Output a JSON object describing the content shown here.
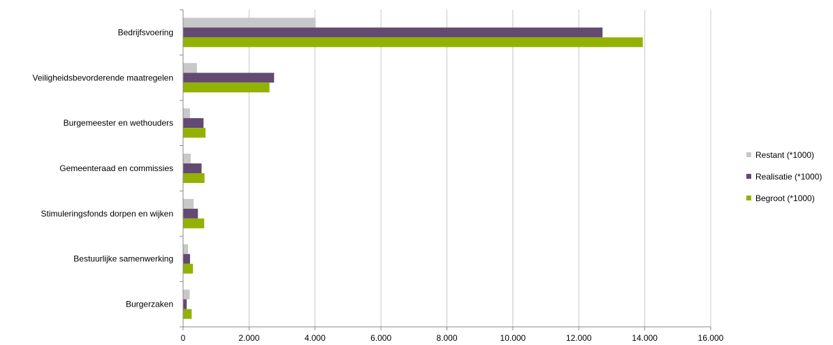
{
  "chart_data": {
    "type": "bar",
    "orientation": "horizontal",
    "categories": [
      "Bedrijfsvoering",
      "Veiligheidsbevorderende maatregelen",
      "Burgemeester en wethouders",
      "Gemeenteraad en commissies",
      "Stimuleringsfonds dorpen en wijken",
      "Bestuurlijke samenwerking",
      "Burgerzaken"
    ],
    "series": [
      {
        "name": "Restant (*1000)",
        "color": "#c8c8c8",
        "values": [
          4020,
          420,
          210,
          230,
          320,
          150,
          200
        ]
      },
      {
        "name": "Realisatie (*1000)",
        "color": "#624a72",
        "values": [
          12720,
          2760,
          620,
          560,
          450,
          210,
          110
        ]
      },
      {
        "name": "Begroot (*1000)",
        "color": "#93b100",
        "values": [
          13940,
          2620,
          680,
          650,
          640,
          300,
          260
        ]
      }
    ],
    "x_ticks": [
      "0",
      "2.000",
      "4.000",
      "6.000",
      "8.000",
      "10.000",
      "12.000",
      "14.000",
      "16.000"
    ],
    "xlim": [
      0,
      16000
    ],
    "grid": true,
    "legend_position": "right",
    "title": "",
    "xlabel": "",
    "ylabel": ""
  }
}
